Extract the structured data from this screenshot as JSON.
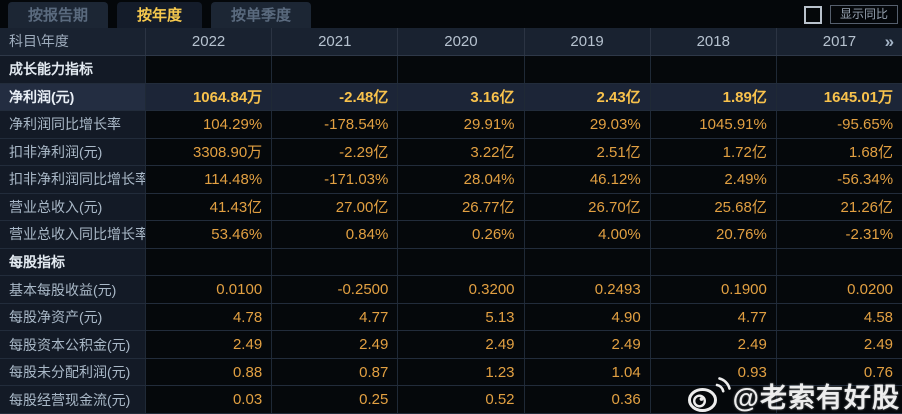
{
  "tabs": [
    {
      "id": "report-period",
      "label": "按报告期",
      "active": false
    },
    {
      "id": "annual",
      "label": "按年度",
      "active": true
    },
    {
      "id": "single-quarter",
      "label": "按单季度",
      "active": false
    }
  ],
  "yoy_toggle": {
    "label": "显示同比",
    "checked": false
  },
  "table": {
    "corner_label": "科目\\年度",
    "years": [
      "2022",
      "2021",
      "2020",
      "2019",
      "2018",
      "2017"
    ],
    "more_indicator": "»",
    "rows": [
      {
        "type": "section",
        "label": "成长能力指标",
        "values": [
          "",
          "",
          "",
          "",
          "",
          ""
        ]
      },
      {
        "type": "data",
        "label": "净利润(元)",
        "highlighted": true,
        "values": [
          "1064.84万",
          "-2.48亿",
          "3.16亿",
          "2.43亿",
          "1.89亿",
          "1645.01万"
        ]
      },
      {
        "type": "data",
        "label": "净利润同比增长率",
        "values": [
          "104.29%",
          "-178.54%",
          "29.91%",
          "29.03%",
          "1045.91%",
          "-95.65%"
        ]
      },
      {
        "type": "data",
        "label": "扣非净利润(元)",
        "values": [
          "3308.90万",
          "-2.29亿",
          "3.22亿",
          "2.51亿",
          "1.72亿",
          "1.68亿"
        ]
      },
      {
        "type": "data",
        "label": "扣非净利润同比增长率",
        "values": [
          "114.48%",
          "-171.03%",
          "28.04%",
          "46.12%",
          "2.49%",
          "-56.34%"
        ]
      },
      {
        "type": "data",
        "label": "营业总收入(元)",
        "values": [
          "41.43亿",
          "27.00亿",
          "26.77亿",
          "26.70亿",
          "25.68亿",
          "21.26亿"
        ]
      },
      {
        "type": "data",
        "label": "营业总收入同比增长率",
        "values": [
          "53.46%",
          "0.84%",
          "0.26%",
          "4.00%",
          "20.76%",
          "-2.31%"
        ]
      },
      {
        "type": "section",
        "label": "每股指标",
        "values": [
          "",
          "",
          "",
          "",
          "",
          ""
        ]
      },
      {
        "type": "data",
        "label": "基本每股收益(元)",
        "values": [
          "0.0100",
          "-0.2500",
          "0.3200",
          "0.2493",
          "0.1900",
          "0.0200"
        ]
      },
      {
        "type": "data",
        "label": "每股净资产(元)",
        "values": [
          "4.78",
          "4.77",
          "5.13",
          "4.90",
          "4.77",
          "4.58"
        ]
      },
      {
        "type": "data",
        "label": "每股资本公积金(元)",
        "values": [
          "2.49",
          "2.49",
          "2.49",
          "2.49",
          "2.49",
          "2.49"
        ]
      },
      {
        "type": "data",
        "label": "每股未分配利润(元)",
        "values": [
          "0.88",
          "0.87",
          "1.23",
          "1.04",
          "0.93",
          "0.76"
        ]
      },
      {
        "type": "data",
        "label": "每股经营现金流(元)",
        "values": [
          "0.03",
          "0.25",
          "0.52",
          "0.36",
          "",
          ""
        ]
      }
    ]
  },
  "watermark": {
    "icon": "weibo-icon",
    "text": "@老索有好股"
  },
  "colors": {
    "value_text": "#e2a042",
    "highlight_value_text": "#f8c24c",
    "tab_active_text": "#f6c94e",
    "header_bg": "#192230",
    "row_highlight_bg": "#1c2537",
    "label_col_bg": "#131a26",
    "cell_bg": "#05080b"
  }
}
